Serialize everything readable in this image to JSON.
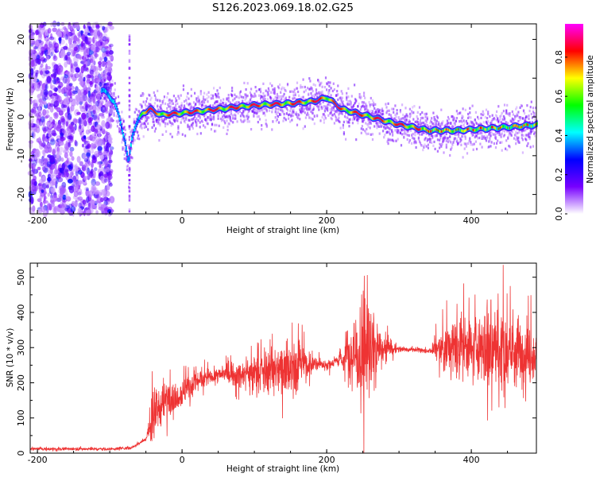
{
  "title": "S126.2023.069.18.02.G25",
  "chart_data": [
    {
      "type": "heatmap",
      "xlabel": "Height of straight line (km)",
      "ylabel": "Frequency (Hz)",
      "xlim": [
        -210,
        490
      ],
      "ylim": [
        -25,
        24
      ],
      "x_ticks": [
        -200,
        0,
        200,
        400
      ],
      "y_ticks": [
        -20,
        -10,
        0,
        10,
        20
      ],
      "colorbar": {
        "label": "Normalized spectral amplitude",
        "range": [
          0,
          0.97
        ],
        "ticks": [
          "0.0",
          "0.2",
          "0.4",
          "0.6",
          "0.8"
        ],
        "colors": [
          "#ffffff",
          "#7700ff",
          "#0000ff",
          "#00ffff",
          "#00ff00",
          "#ffff00",
          "#ff0000",
          "#ff00ff"
        ]
      },
      "ridge": {
        "x": [
          -110,
          -95,
          -88,
          -80,
          -75,
          -70,
          -65,
          -55,
          -45,
          -30,
          0,
          50,
          100,
          150,
          180,
          200,
          220,
          260,
          300,
          340,
          380,
          420,
          460,
          490
        ],
        "y": [
          7,
          4,
          0,
          -6,
          -12,
          -5,
          -2,
          1,
          2,
          0.5,
          1,
          2,
          3,
          3.5,
          4,
          5,
          2,
          0,
          -2,
          -3.5,
          -3.5,
          -3,
          -2.5,
          -2
        ]
      }
    },
    {
      "type": "line",
      "xlabel": "Height of straight line (km)",
      "ylabel": "SNR (10 * v/v)",
      "xlim": [
        -210,
        490
      ],
      "ylim": [
        0,
        540
      ],
      "x_ticks": [
        -200,
        0,
        200,
        400
      ],
      "y_ticks": [
        0,
        100,
        200,
        300,
        400,
        500
      ],
      "color": "#ee3333",
      "series": [
        {
          "envelope": {
            "x": [
              -210,
              -150,
              -100,
              -70,
              -50,
              -40,
              -30,
              -20,
              0,
              20,
              40,
              60,
              80,
              100,
              120,
              140,
              160,
              180,
              200,
              210,
              220,
              230,
              240,
              250,
              260,
              270,
              280,
              300,
              320,
              340,
              360,
              380,
              400,
              420,
              440,
              460,
              480,
              490
            ],
            "y": [
              12,
              12,
              12,
              15,
              40,
              100,
              130,
              160,
              170,
              205,
              220,
              225,
              220,
              230,
              235,
              245,
              250,
              252,
              252,
              258,
              270,
              275,
              290,
              300,
              300,
              290,
              295,
              295,
              295,
              290,
              295,
              300,
              300,
              295,
              290,
              290,
              285,
              285
            ]
          },
          "noise": {
            "x": [
              -210,
              -50,
              -40,
              0,
              50,
              100,
              150,
              180,
              200,
              215,
              240,
              260,
              275,
              300,
              345,
              360,
              400,
              430,
              460,
              490
            ],
            "y": [
              3,
              4,
              50,
              35,
              18,
              45,
              75,
              25,
              10,
              15,
              110,
              150,
              30,
              6,
              6,
              70,
              75,
              110,
              90,
              60
            ]
          }
        }
      ]
    }
  ]
}
